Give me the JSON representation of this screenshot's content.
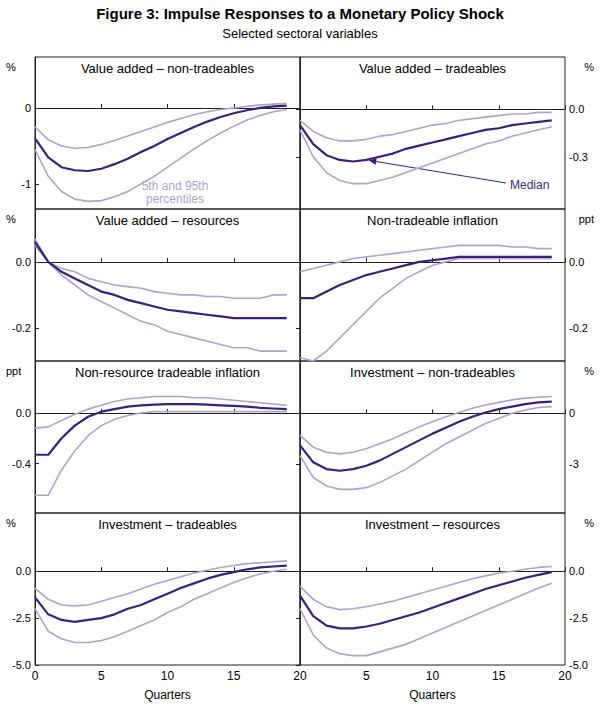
{
  "title": "Figure 3: Impulse Responses to a Monetary Policy Shock",
  "subtitle": "Selected sectoral variables",
  "chart_data": [
    {
      "type": "line",
      "title": "Value added – non-tradeables",
      "ylabel": "%",
      "x": [
        0,
        1,
        2,
        3,
        4,
        5,
        6,
        7,
        8,
        9,
        10,
        11,
        12,
        13,
        14,
        15,
        16,
        17,
        18,
        19
      ],
      "xlim": [
        0,
        20
      ],
      "xticks": [
        0,
        5,
        10,
        15,
        20
      ],
      "ylim": [
        -1.33,
        0.67
      ],
      "yticks": [
        -1,
        0
      ],
      "grid": false,
      "tick_labels": "y",
      "annotations": [
        {
          "text": "5th and 95th\npercentiles"
        }
      ],
      "series": [
        {
          "color": "#a9a5cf",
          "values": [
            -0.55,
            -0.9,
            -1.1,
            -1.2,
            -1.23,
            -1.22,
            -1.17,
            -1.1,
            -1.0,
            -0.9,
            -0.78,
            -0.66,
            -0.54,
            -0.43,
            -0.33,
            -0.24,
            -0.16,
            -0.1,
            -0.05,
            -0.02
          ]
        },
        {
          "color": "#a9a5cf",
          "values": [
            -0.25,
            -0.42,
            -0.5,
            -0.53,
            -0.52,
            -0.48,
            -0.43,
            -0.37,
            -0.31,
            -0.25,
            -0.19,
            -0.14,
            -0.09,
            -0.05,
            -0.02,
            0,
            0.02,
            0.04,
            0.05,
            0.06
          ]
        },
        {
          "color": "#3b1f78",
          "values": [
            -0.4,
            -0.65,
            -0.78,
            -0.82,
            -0.83,
            -0.8,
            -0.74,
            -0.67,
            -0.58,
            -0.5,
            -0.41,
            -0.33,
            -0.25,
            -0.18,
            -0.12,
            -0.07,
            -0.03,
            0,
            0.02,
            0.03
          ]
        }
      ]
    },
    {
      "type": "line",
      "title": "Value added – tradeables",
      "ylabel": "%",
      "x": [
        0,
        1,
        2,
        3,
        4,
        5,
        6,
        7,
        8,
        9,
        10,
        11,
        12,
        13,
        14,
        15,
        16,
        17,
        18,
        19
      ],
      "xlim": [
        0,
        20
      ],
      "xticks": [
        0,
        5,
        10,
        15,
        20
      ],
      "ylim": [
        -0.63,
        0.33
      ],
      "yticks": [
        -0.3,
        {
          "value": 0,
          "label": "0.0"
        }
      ],
      "grid": false,
      "tick_labels": "y",
      "annotations": [
        {
          "text": "Median"
        }
      ],
      "series": [
        {
          "color": "#a9a5cf",
          "values": [
            -0.13,
            -0.3,
            -0.4,
            -0.45,
            -0.47,
            -0.47,
            -0.45,
            -0.43,
            -0.4,
            -0.37,
            -0.34,
            -0.31,
            -0.28,
            -0.25,
            -0.22,
            -0.2,
            -0.17,
            -0.15,
            -0.13,
            -0.11
          ]
        },
        {
          "color": "#a9a5cf",
          "values": [
            -0.07,
            -0.14,
            -0.18,
            -0.2,
            -0.2,
            -0.19,
            -0.17,
            -0.16,
            -0.14,
            -0.12,
            -0.1,
            -0.09,
            -0.07,
            -0.06,
            -0.05,
            -0.04,
            -0.03,
            -0.03,
            -0.02,
            -0.02
          ]
        },
        {
          "color": "#3b1f78",
          "values": [
            -0.1,
            -0.22,
            -0.29,
            -0.32,
            -0.33,
            -0.32,
            -0.3,
            -0.28,
            -0.25,
            -0.23,
            -0.21,
            -0.19,
            -0.17,
            -0.15,
            -0.13,
            -0.12,
            -0.1,
            -0.09,
            -0.08,
            -0.07
          ]
        }
      ]
    },
    {
      "type": "line",
      "title": "Value added – resources",
      "ylabel": "%",
      "x": [
        0,
        1,
        2,
        3,
        4,
        5,
        6,
        7,
        8,
        9,
        10,
        11,
        12,
        13,
        14,
        15,
        16,
        17,
        18,
        19
      ],
      "xlim": [
        0,
        20
      ],
      "xticks": [
        0,
        5,
        10,
        15,
        20
      ],
      "ylim": [
        -0.3,
        0.16
      ],
      "yticks": [
        -0.2,
        {
          "value": 0,
          "label": "0.0"
        }
      ],
      "grid": false,
      "tick_labels": "y",
      "series": [
        {
          "color": "#a9a5cf",
          "values": [
            0.07,
            0.0,
            -0.04,
            -0.07,
            -0.1,
            -0.12,
            -0.14,
            -0.16,
            -0.18,
            -0.19,
            -0.21,
            -0.22,
            -0.23,
            -0.24,
            -0.25,
            -0.26,
            -0.26,
            -0.27,
            -0.27,
            -0.27
          ]
        },
        {
          "color": "#a9a5cf",
          "values": [
            0.05,
            0.0,
            -0.02,
            -0.03,
            -0.05,
            -0.06,
            -0.07,
            -0.075,
            -0.08,
            -0.09,
            -0.095,
            -0.1,
            -0.1,
            -0.105,
            -0.105,
            -0.11,
            -0.11,
            -0.11,
            -0.1,
            -0.1
          ]
        },
        {
          "color": "#3b1f78",
          "values": [
            0.06,
            0.0,
            -0.03,
            -0.05,
            -0.07,
            -0.09,
            -0.1,
            -0.115,
            -0.125,
            -0.135,
            -0.145,
            -0.15,
            -0.155,
            -0.16,
            -0.165,
            -0.17,
            -0.17,
            -0.17,
            -0.17,
            -0.17
          ]
        }
      ]
    },
    {
      "type": "line",
      "title": "Non-tradeable inflation",
      "ylabel": "ppt",
      "x": [
        0,
        1,
        2,
        3,
        4,
        5,
        6,
        7,
        8,
        9,
        10,
        11,
        12,
        13,
        14,
        15,
        16,
        17,
        18,
        19
      ],
      "xlim": [
        0,
        20
      ],
      "xticks": [
        0,
        5,
        10,
        15,
        20
      ],
      "ylim": [
        -0.3,
        0.16
      ],
      "yticks": [
        -0.2,
        {
          "value": 0,
          "label": "0.0"
        }
      ],
      "grid": false,
      "tick_labels": "y",
      "series": [
        {
          "color": "#a9a5cf",
          "values": [
            -0.29,
            -0.3,
            -0.27,
            -0.23,
            -0.19,
            -0.15,
            -0.11,
            -0.08,
            -0.05,
            -0.03,
            -0.01,
            0,
            0.01,
            0.01,
            0.01,
            0.01,
            0.01,
            0.01,
            0.01,
            0.01
          ]
        },
        {
          "color": "#a9a5cf",
          "values": [
            -0.03,
            -0.02,
            -0.01,
            0,
            0.01,
            0.015,
            0.02,
            0.025,
            0.03,
            0.035,
            0.04,
            0.045,
            0.05,
            0.05,
            0.05,
            0.05,
            0.045,
            0.045,
            0.04,
            0.04
          ]
        },
        {
          "color": "#3b1f78",
          "values": [
            -0.11,
            -0.11,
            -0.09,
            -0.07,
            -0.055,
            -0.04,
            -0.03,
            -0.02,
            -0.01,
            0,
            0.005,
            0.01,
            0.015,
            0.015,
            0.015,
            0.015,
            0.015,
            0.015,
            0.015,
            0.015
          ]
        }
      ]
    },
    {
      "type": "line",
      "title": "Non-resource tradeable inflation",
      "ylabel": "ppt",
      "x": [
        0,
        1,
        2,
        3,
        4,
        5,
        6,
        7,
        8,
        9,
        10,
        11,
        12,
        13,
        14,
        15,
        16,
        17,
        18,
        19
      ],
      "xlim": [
        0,
        20
      ],
      "xticks": [
        0,
        5,
        10,
        15,
        20
      ],
      "ylim": [
        -0.79,
        0.41
      ],
      "yticks": [
        -0.4,
        {
          "value": 0,
          "label": "0.0"
        }
      ],
      "grid": false,
      "tick_labels": "y",
      "series": [
        {
          "color": "#a9a5cf",
          "values": [
            -0.65,
            -0.65,
            -0.45,
            -0.3,
            -0.18,
            -0.1,
            -0.05,
            -0.02,
            0,
            0.01,
            0.01,
            0.01,
            0.01,
            0.01,
            0.01,
            0.01,
            0.01,
            0.01,
            0.01,
            0.01
          ]
        },
        {
          "color": "#a9a5cf",
          "values": [
            -0.12,
            -0.11,
            -0.06,
            -0.01,
            0.03,
            0.06,
            0.09,
            0.11,
            0.12,
            0.13,
            0.13,
            0.13,
            0.12,
            0.12,
            0.11,
            0.1,
            0.09,
            0.08,
            0.07,
            0.06
          ]
        },
        {
          "color": "#3b1f78",
          "values": [
            -0.33,
            -0.33,
            -0.2,
            -0.1,
            -0.03,
            0.01,
            0.03,
            0.05,
            0.06,
            0.065,
            0.07,
            0.07,
            0.07,
            0.065,
            0.06,
            0.055,
            0.05,
            0.04,
            0.035,
            0.03
          ]
        }
      ]
    },
    {
      "type": "line",
      "title": "Investment – non-tradeables",
      "ylabel": "%",
      "x": [
        0,
        1,
        2,
        3,
        4,
        5,
        6,
        7,
        8,
        9,
        10,
        11,
        12,
        13,
        14,
        15,
        16,
        17,
        18,
        19
      ],
      "xlim": [
        0,
        20
      ],
      "xticks": [
        0,
        5,
        10,
        15,
        20
      ],
      "ylim": [
        -5.9,
        3.1
      ],
      "yticks": [
        -3,
        0
      ],
      "grid": false,
      "tick_labels": "y",
      "series": [
        {
          "color": "#a9a5cf",
          "values": [
            -2.5,
            -3.8,
            -4.3,
            -4.5,
            -4.5,
            -4.4,
            -4.1,
            -3.7,
            -3.3,
            -2.8,
            -2.3,
            -1.8,
            -1.4,
            -1.0,
            -0.6,
            -0.3,
            0,
            0.2,
            0.35,
            0.4
          ]
        },
        {
          "color": "#a9a5cf",
          "values": [
            -1.3,
            -2.0,
            -2.3,
            -2.4,
            -2.3,
            -2.1,
            -1.8,
            -1.5,
            -1.15,
            -0.8,
            -0.5,
            -0.2,
            0.05,
            0.3,
            0.5,
            0.65,
            0.8,
            0.9,
            0.95,
            1.0
          ]
        },
        {
          "color": "#3b1f78",
          "values": [
            -1.9,
            -2.9,
            -3.3,
            -3.4,
            -3.3,
            -3.1,
            -2.8,
            -2.4,
            -2.0,
            -1.6,
            -1.2,
            -0.85,
            -0.5,
            -0.2,
            0.05,
            0.25,
            0.4,
            0.55,
            0.65,
            0.7
          ]
        }
      ]
    },
    {
      "type": "line",
      "title": "Investment – tradeables",
      "ylabel": "%",
      "xlabel": "Quarters",
      "x": [
        0,
        1,
        2,
        3,
        4,
        5,
        6,
        7,
        8,
        9,
        10,
        11,
        12,
        13,
        14,
        15,
        16,
        17,
        18,
        19
      ],
      "xlim": [
        0,
        20
      ],
      "xticks": [
        0,
        5,
        10,
        15,
        20
      ],
      "ylim": [
        -5,
        3.1
      ],
      "yticks": [
        {
          "value": -5,
          "label": "-5.0"
        },
        -2.5,
        {
          "value": 0,
          "label": "0.0"
        }
      ],
      "grid": false,
      "series": [
        {
          "color": "#a9a5cf",
          "values": [
            -2.0,
            -3.2,
            -3.6,
            -3.8,
            -3.8,
            -3.7,
            -3.5,
            -3.2,
            -2.9,
            -2.6,
            -2.2,
            -1.9,
            -1.5,
            -1.2,
            -0.9,
            -0.6,
            -0.35,
            -0.15,
            0,
            0.1
          ]
        },
        {
          "color": "#a9a5cf",
          "values": [
            -0.9,
            -1.5,
            -1.8,
            -1.85,
            -1.8,
            -1.6,
            -1.4,
            -1.2,
            -0.95,
            -0.7,
            -0.5,
            -0.3,
            -0.1,
            0.05,
            0.2,
            0.3,
            0.4,
            0.45,
            0.5,
            0.55
          ]
        },
        {
          "color": "#3b1f78",
          "values": [
            -1.4,
            -2.3,
            -2.6,
            -2.7,
            -2.6,
            -2.5,
            -2.3,
            -2.0,
            -1.8,
            -1.5,
            -1.2,
            -0.9,
            -0.65,
            -0.4,
            -0.2,
            -0.05,
            0.1,
            0.2,
            0.25,
            0.3
          ]
        }
      ]
    },
    {
      "type": "line",
      "title": "Investment – resources",
      "ylabel": "%",
      "xlabel": "Quarters",
      "x": [
        0,
        1,
        2,
        3,
        4,
        5,
        6,
        7,
        8,
        9,
        10,
        11,
        12,
        13,
        14,
        15,
        16,
        17,
        18,
        19
      ],
      "xlim": [
        0,
        20
      ],
      "xticks": [
        0,
        5,
        10,
        15,
        20
      ],
      "ylim": [
        -5,
        3.1
      ],
      "yticks": [
        {
          "value": -5,
          "label": "-5.0"
        },
        -2.5,
        {
          "value": 0,
          "label": "0.0"
        }
      ],
      "grid": false,
      "series": [
        {
          "color": "#a9a5cf",
          "values": [
            -2.0,
            -3.4,
            -4.1,
            -4.4,
            -4.5,
            -4.5,
            -4.3,
            -4.1,
            -3.9,
            -3.6,
            -3.3,
            -3.0,
            -2.7,
            -2.4,
            -2.1,
            -1.8,
            -1.5,
            -1.2,
            -0.9,
            -0.65
          ]
        },
        {
          "color": "#a9a5cf",
          "values": [
            -0.8,
            -1.5,
            -1.9,
            -2.05,
            -2.0,
            -1.9,
            -1.75,
            -1.6,
            -1.4,
            -1.2,
            -1.0,
            -0.8,
            -0.6,
            -0.4,
            -0.25,
            -0.1,
            0,
            0.1,
            0.2,
            0.25
          ]
        },
        {
          "color": "#3b1f78",
          "values": [
            -1.3,
            -2.4,
            -2.9,
            -3.05,
            -3.05,
            -2.95,
            -2.8,
            -2.6,
            -2.4,
            -2.2,
            -1.95,
            -1.7,
            -1.45,
            -1.2,
            -0.95,
            -0.75,
            -0.55,
            -0.35,
            -0.2,
            -0.05
          ]
        }
      ]
    }
  ]
}
